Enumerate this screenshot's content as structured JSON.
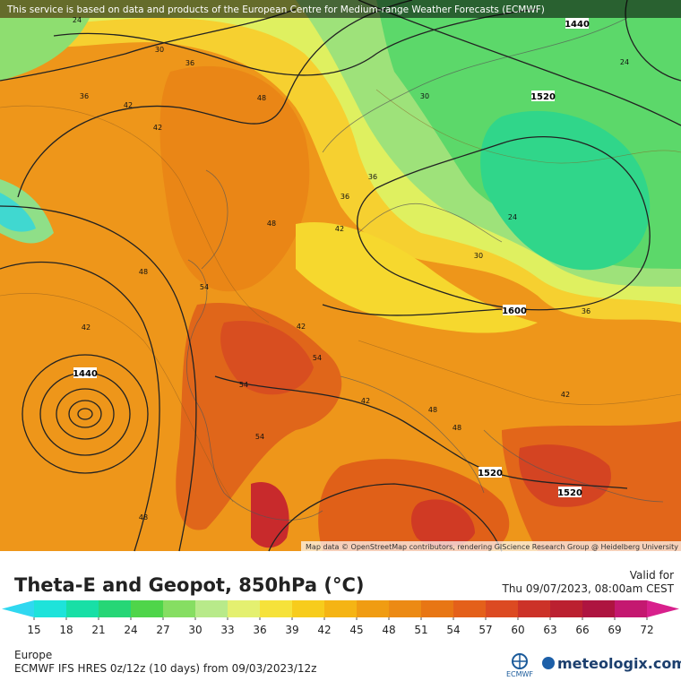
{
  "map": {
    "banner": "This service is based on data and products of the European Centre for Medium-range Weather Forecasts (ECMWF)",
    "attribution": "Map data © OpenStreetMap contributors, rendering GIScience Research Group @ Heidelberg University",
    "geopotential_labels": [
      1440,
      1520,
      1440,
      1600,
      1520,
      1520
    ],
    "theta_labels": [
      24,
      30,
      36,
      36,
      42,
      42,
      48,
      48,
      54,
      54,
      42,
      36,
      30,
      24,
      24,
      30,
      36,
      42,
      48,
      54,
      42,
      48,
      42,
      36,
      48,
      54,
      48,
      42
    ]
  },
  "legend": {
    "title": "Theta-E and Geopot, 850hPa (°C)",
    "valid_label": "Valid for",
    "valid_time": "Thu 09/07/2023, 08:00am CEST",
    "ticks": [
      15,
      18,
      21,
      24,
      27,
      30,
      33,
      36,
      39,
      42,
      45,
      48,
      51,
      54,
      57,
      60,
      63,
      66,
      69,
      72
    ],
    "colors": [
      "#30d8f0",
      "#1ee3da",
      "#18dfa6",
      "#26d676",
      "#4fd54a",
      "#86de62",
      "#b8ea8a",
      "#e4f070",
      "#f6e23a",
      "#f7cc1c",
      "#f5b414",
      "#f09c12",
      "#ec8a14",
      "#e87614",
      "#e4601a",
      "#dc4a22",
      "#cc3228",
      "#bb2030",
      "#ae1440",
      "#c41870",
      "#d8208c"
    ]
  },
  "footer": {
    "region": "Europe",
    "model": "ECMWF IFS HRES 0z/12z (10 days) from 09/03/2023/12z",
    "ecmwf": "ECMWF",
    "brand": "meteologix.com"
  }
}
